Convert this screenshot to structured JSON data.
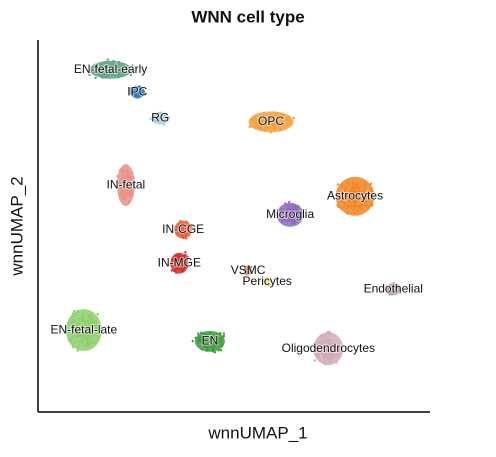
{
  "chart_data": {
    "type": "scatter",
    "title": "WNN cell type",
    "x_label": "wnnUMAP_1",
    "y_label": "wnnUMAP_2",
    "xlim": [
      0,
      100
    ],
    "ylim": [
      0,
      100
    ],
    "series": [
      {
        "name": "EN-fetal-early",
        "color": "#5fa883",
        "x": [
          19
        ],
        "values": [
          92
        ]
      },
      {
        "name": "IPC",
        "color": "#2f7fc1",
        "x": [
          26
        ],
        "values": [
          86
        ]
      },
      {
        "name": "RG",
        "color": "#9ecae1",
        "x": [
          32
        ],
        "values": [
          79
        ]
      },
      {
        "name": "IN-fetal",
        "color": "#e8928a",
        "x": [
          23
        ],
        "values": [
          61
        ]
      },
      {
        "name": "OPC",
        "color": "#f5a03c",
        "x": [
          61
        ],
        "values": [
          78
        ]
      },
      {
        "name": "Microglia",
        "color": "#8e6bbf",
        "x": [
          66
        ],
        "values": [
          53
        ]
      },
      {
        "name": "Astrocytes",
        "color": "#f28522",
        "x": [
          83
        ],
        "values": [
          58
        ]
      },
      {
        "name": "IN-CGE",
        "color": "#e8603c",
        "x": [
          38
        ],
        "values": [
          49
        ]
      },
      {
        "name": "IN-MGE",
        "color": "#d83030",
        "x": [
          37
        ],
        "values": [
          40
        ]
      },
      {
        "name": "VSMC",
        "color": "#b5521b",
        "x": [
          55
        ],
        "values": [
          38
        ]
      },
      {
        "name": "Pericytes",
        "color": "#eedc6a",
        "x": [
          60
        ],
        "values": [
          35
        ]
      },
      {
        "name": "Endothelial",
        "color": "#b89aa0",
        "x": [
          93
        ],
        "values": [
          33
        ]
      },
      {
        "name": "EN-fetal-late",
        "color": "#8ccf6a",
        "x": [
          12
        ],
        "values": [
          22
        ]
      },
      {
        "name": "EN",
        "color": "#3a9b3a",
        "x": [
          45
        ],
        "values": [
          19
        ]
      },
      {
        "name": "Oligodendrocytes",
        "color": "#d2aab9",
        "x": [
          76
        ],
        "values": [
          17
        ]
      }
    ]
  }
}
